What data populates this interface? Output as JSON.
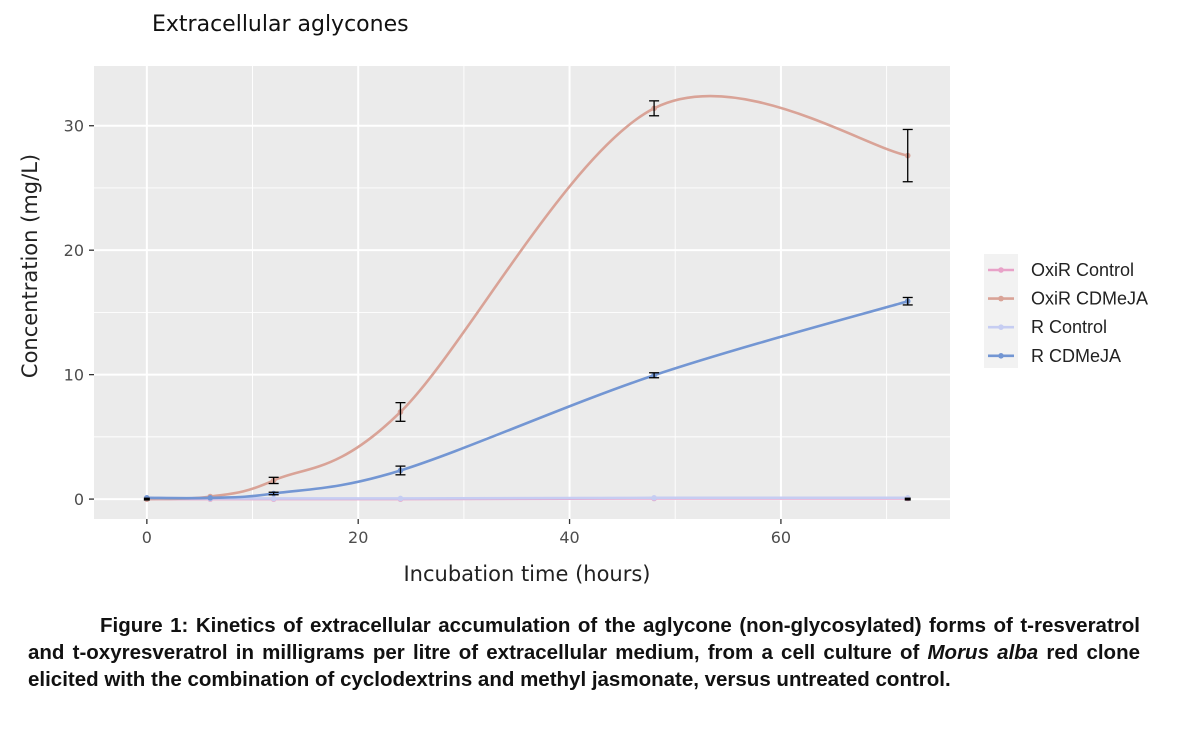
{
  "chart_data": {
    "type": "line",
    "title": "Extracellular aglycones",
    "xlabel": "Incubation time (hours)",
    "ylabel": "Concentration (mg/L)",
    "xlim": [
      -5,
      76
    ],
    "ylim": [
      -1.6,
      34.8
    ],
    "x_ticks": [
      0,
      20,
      40,
      60
    ],
    "y_ticks": [
      0,
      10,
      20,
      30
    ],
    "grid": true,
    "legend_position": "right",
    "series": [
      {
        "name": "OxiR Control",
        "color": "#e8a2c8",
        "x": [
          0,
          6,
          12,
          24,
          48,
          72
        ],
        "y": [
          0,
          0,
          0,
          0,
          0.05,
          0.05
        ],
        "err": [
          0,
          0,
          0,
          0,
          0,
          0
        ]
      },
      {
        "name": "OxiR CDMeJA",
        "color": "#d9a397",
        "x": [
          0,
          6,
          12,
          24,
          48,
          72
        ],
        "y": [
          0,
          0.2,
          1.5,
          7.0,
          31.4,
          27.6
        ],
        "err": [
          0,
          0,
          0.25,
          0.75,
          0.6,
          2.1
        ]
      },
      {
        "name": "R Control",
        "color": "#c6cdf2",
        "x": [
          0,
          6,
          12,
          24,
          48,
          72
        ],
        "y": [
          0.1,
          0.05,
          0.05,
          0.05,
          0.1,
          0.1
        ],
        "err": [
          0,
          0,
          0,
          0,
          0,
          0
        ]
      },
      {
        "name": "R CDMeJA",
        "color": "#7396d3",
        "x": [
          0,
          6,
          12,
          24,
          48,
          72
        ],
        "y": [
          0.1,
          0.1,
          0.45,
          2.3,
          9.95,
          15.9
        ],
        "err": [
          0,
          0,
          0.1,
          0.35,
          0.2,
          0.3
        ]
      }
    ]
  },
  "caption": {
    "label": "Figure 1:",
    "text_before": " Kinetics of extracellular accumulation of the aglycone (non-glycosylated) forms of t-resveratrol and t-oxyresveratrol in milligrams per litre of extracellular medium, from a cell culture of ",
    "species": "Morus alba",
    "text_after": " red clone elicited with the combination of cyclodextrins and methyl jasmonate, versus untreated control."
  }
}
